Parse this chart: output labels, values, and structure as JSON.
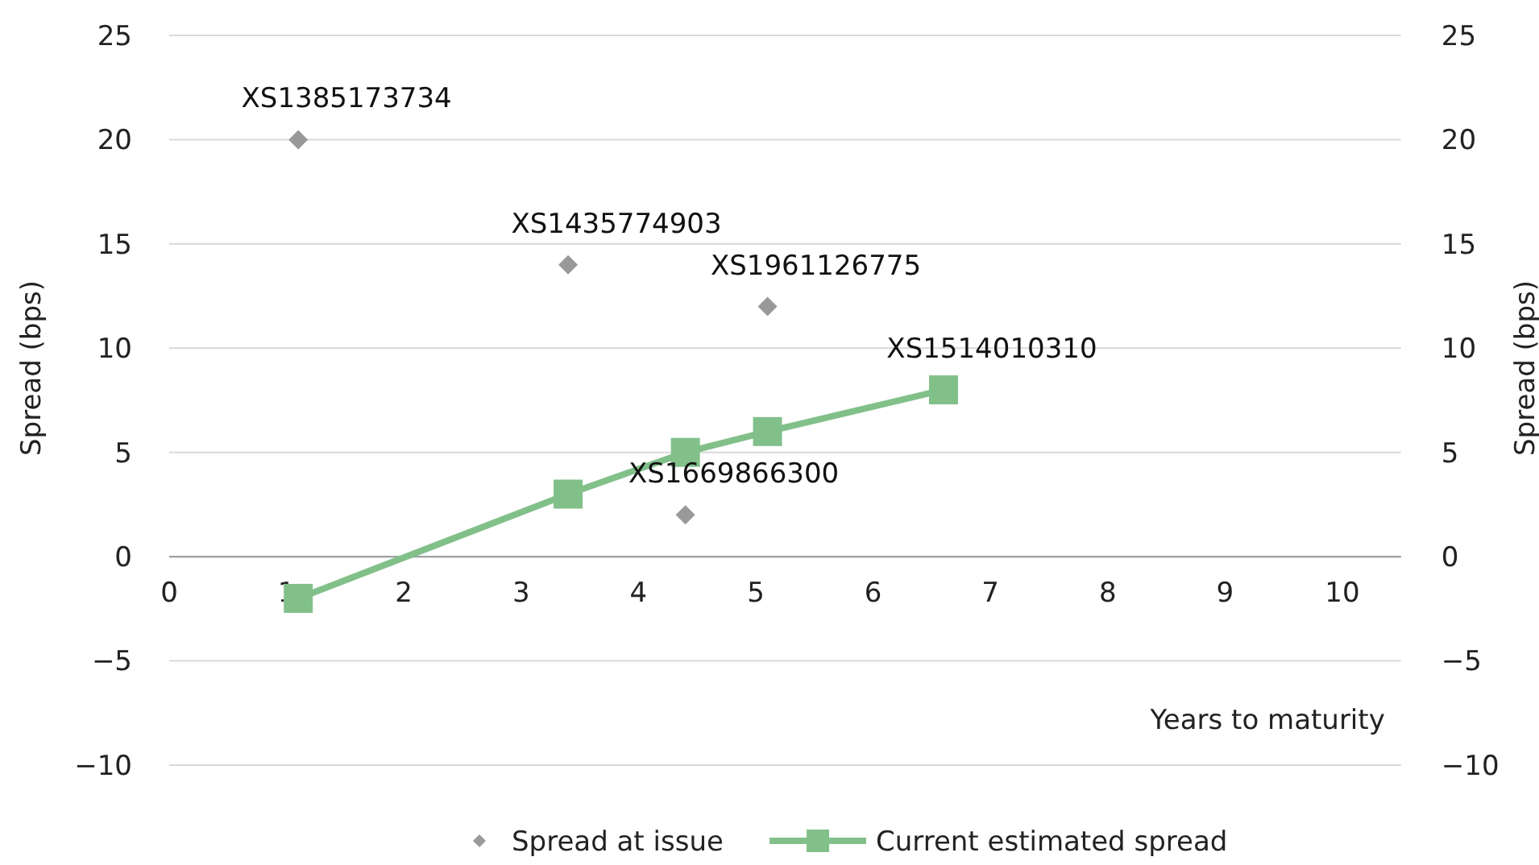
{
  "chart_data": {
    "type": "scatter",
    "xlabel": "Years to maturity",
    "ylabel": "Spread (bps)",
    "y2label": "Spread (bps)",
    "xlim": [
      0,
      10.5
    ],
    "xticks": [
      0,
      1,
      2,
      3,
      4,
      5,
      6,
      7,
      8,
      9,
      10
    ],
    "ylim": [
      -10,
      25
    ],
    "yticks": [
      {
        "value": -10,
        "label": "−10"
      },
      {
        "value": -5,
        "label": "−5"
      },
      0,
      5,
      10,
      15,
      20,
      25
    ],
    "y2lim": [
      -10,
      25
    ],
    "y2ticks": [
      {
        "value": -10,
        "label": "−10"
      },
      {
        "value": -5,
        "label": "−5"
      },
      0,
      5,
      10,
      15,
      20,
      25
    ],
    "grid": "y",
    "legend": "bottom",
    "series": [
      {
        "name": "Spread at issue",
        "marker": "diamond",
        "color": "#999999",
        "x": [
          1.1,
          3.4,
          5.1,
          4.4
        ],
        "values": [
          20,
          14,
          12,
          2
        ]
      },
      {
        "name": "Current estimated spread",
        "type": "line",
        "marker": "square",
        "line_style": "solid",
        "color": "#82c08a",
        "x": [
          1.1,
          3.4,
          4.4,
          5.1,
          6.6
        ],
        "values": [
          -2,
          3,
          5,
          6,
          8
        ]
      }
    ],
    "annotations": [
      {
        "text": "XS1385173734",
        "x": 1.1,
        "y": 20
      },
      {
        "text": "XS1435774903",
        "x": 3.4,
        "y": 14
      },
      {
        "text": "XS1961126775",
        "x": 5.1,
        "y": 12
      },
      {
        "text": "XS1669866300",
        "x": 4.4,
        "y": 2
      },
      {
        "text": "XS1514010310",
        "x": 6.6,
        "y": 8
      }
    ]
  }
}
